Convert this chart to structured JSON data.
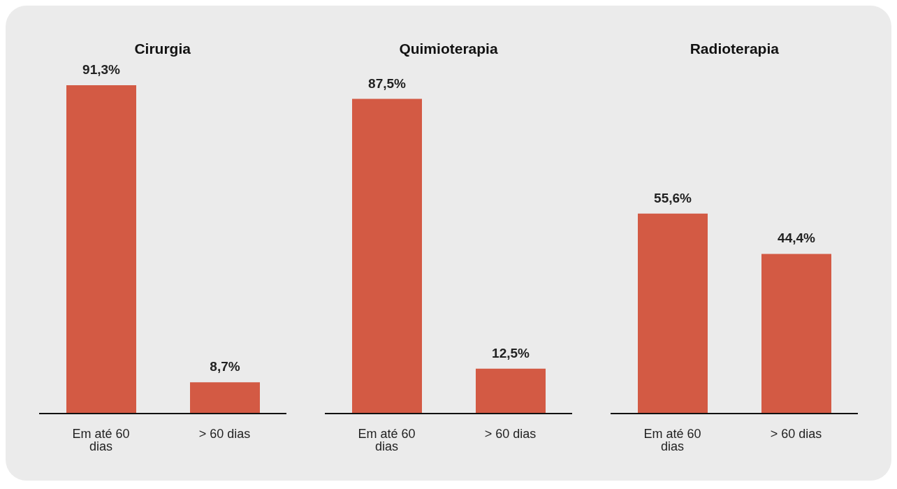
{
  "chart_data": [
    {
      "type": "bar",
      "title": "Cirurgia",
      "categories": [
        "Em até 60 dias",
        "> 60 dias"
      ],
      "values": [
        91.3,
        8.7
      ],
      "value_labels": [
        "91,3%",
        "8,7%"
      ],
      "color": "#d35a44"
    },
    {
      "type": "bar",
      "title": "Quimioterapia",
      "categories": [
        "Em até 60 dias",
        "> 60 dias"
      ],
      "values": [
        87.5,
        12.5
      ],
      "value_labels": [
        "87,5%",
        "12,5%"
      ],
      "color": "#d35a44"
    },
    {
      "type": "bar",
      "title": "Radioterapia",
      "categories": [
        "Em até 60 dias",
        "> 60 dias"
      ],
      "values": [
        55.6,
        44.4
      ],
      "value_labels": [
        "55,6%",
        "44,4%"
      ],
      "color": "#d35a44"
    }
  ]
}
